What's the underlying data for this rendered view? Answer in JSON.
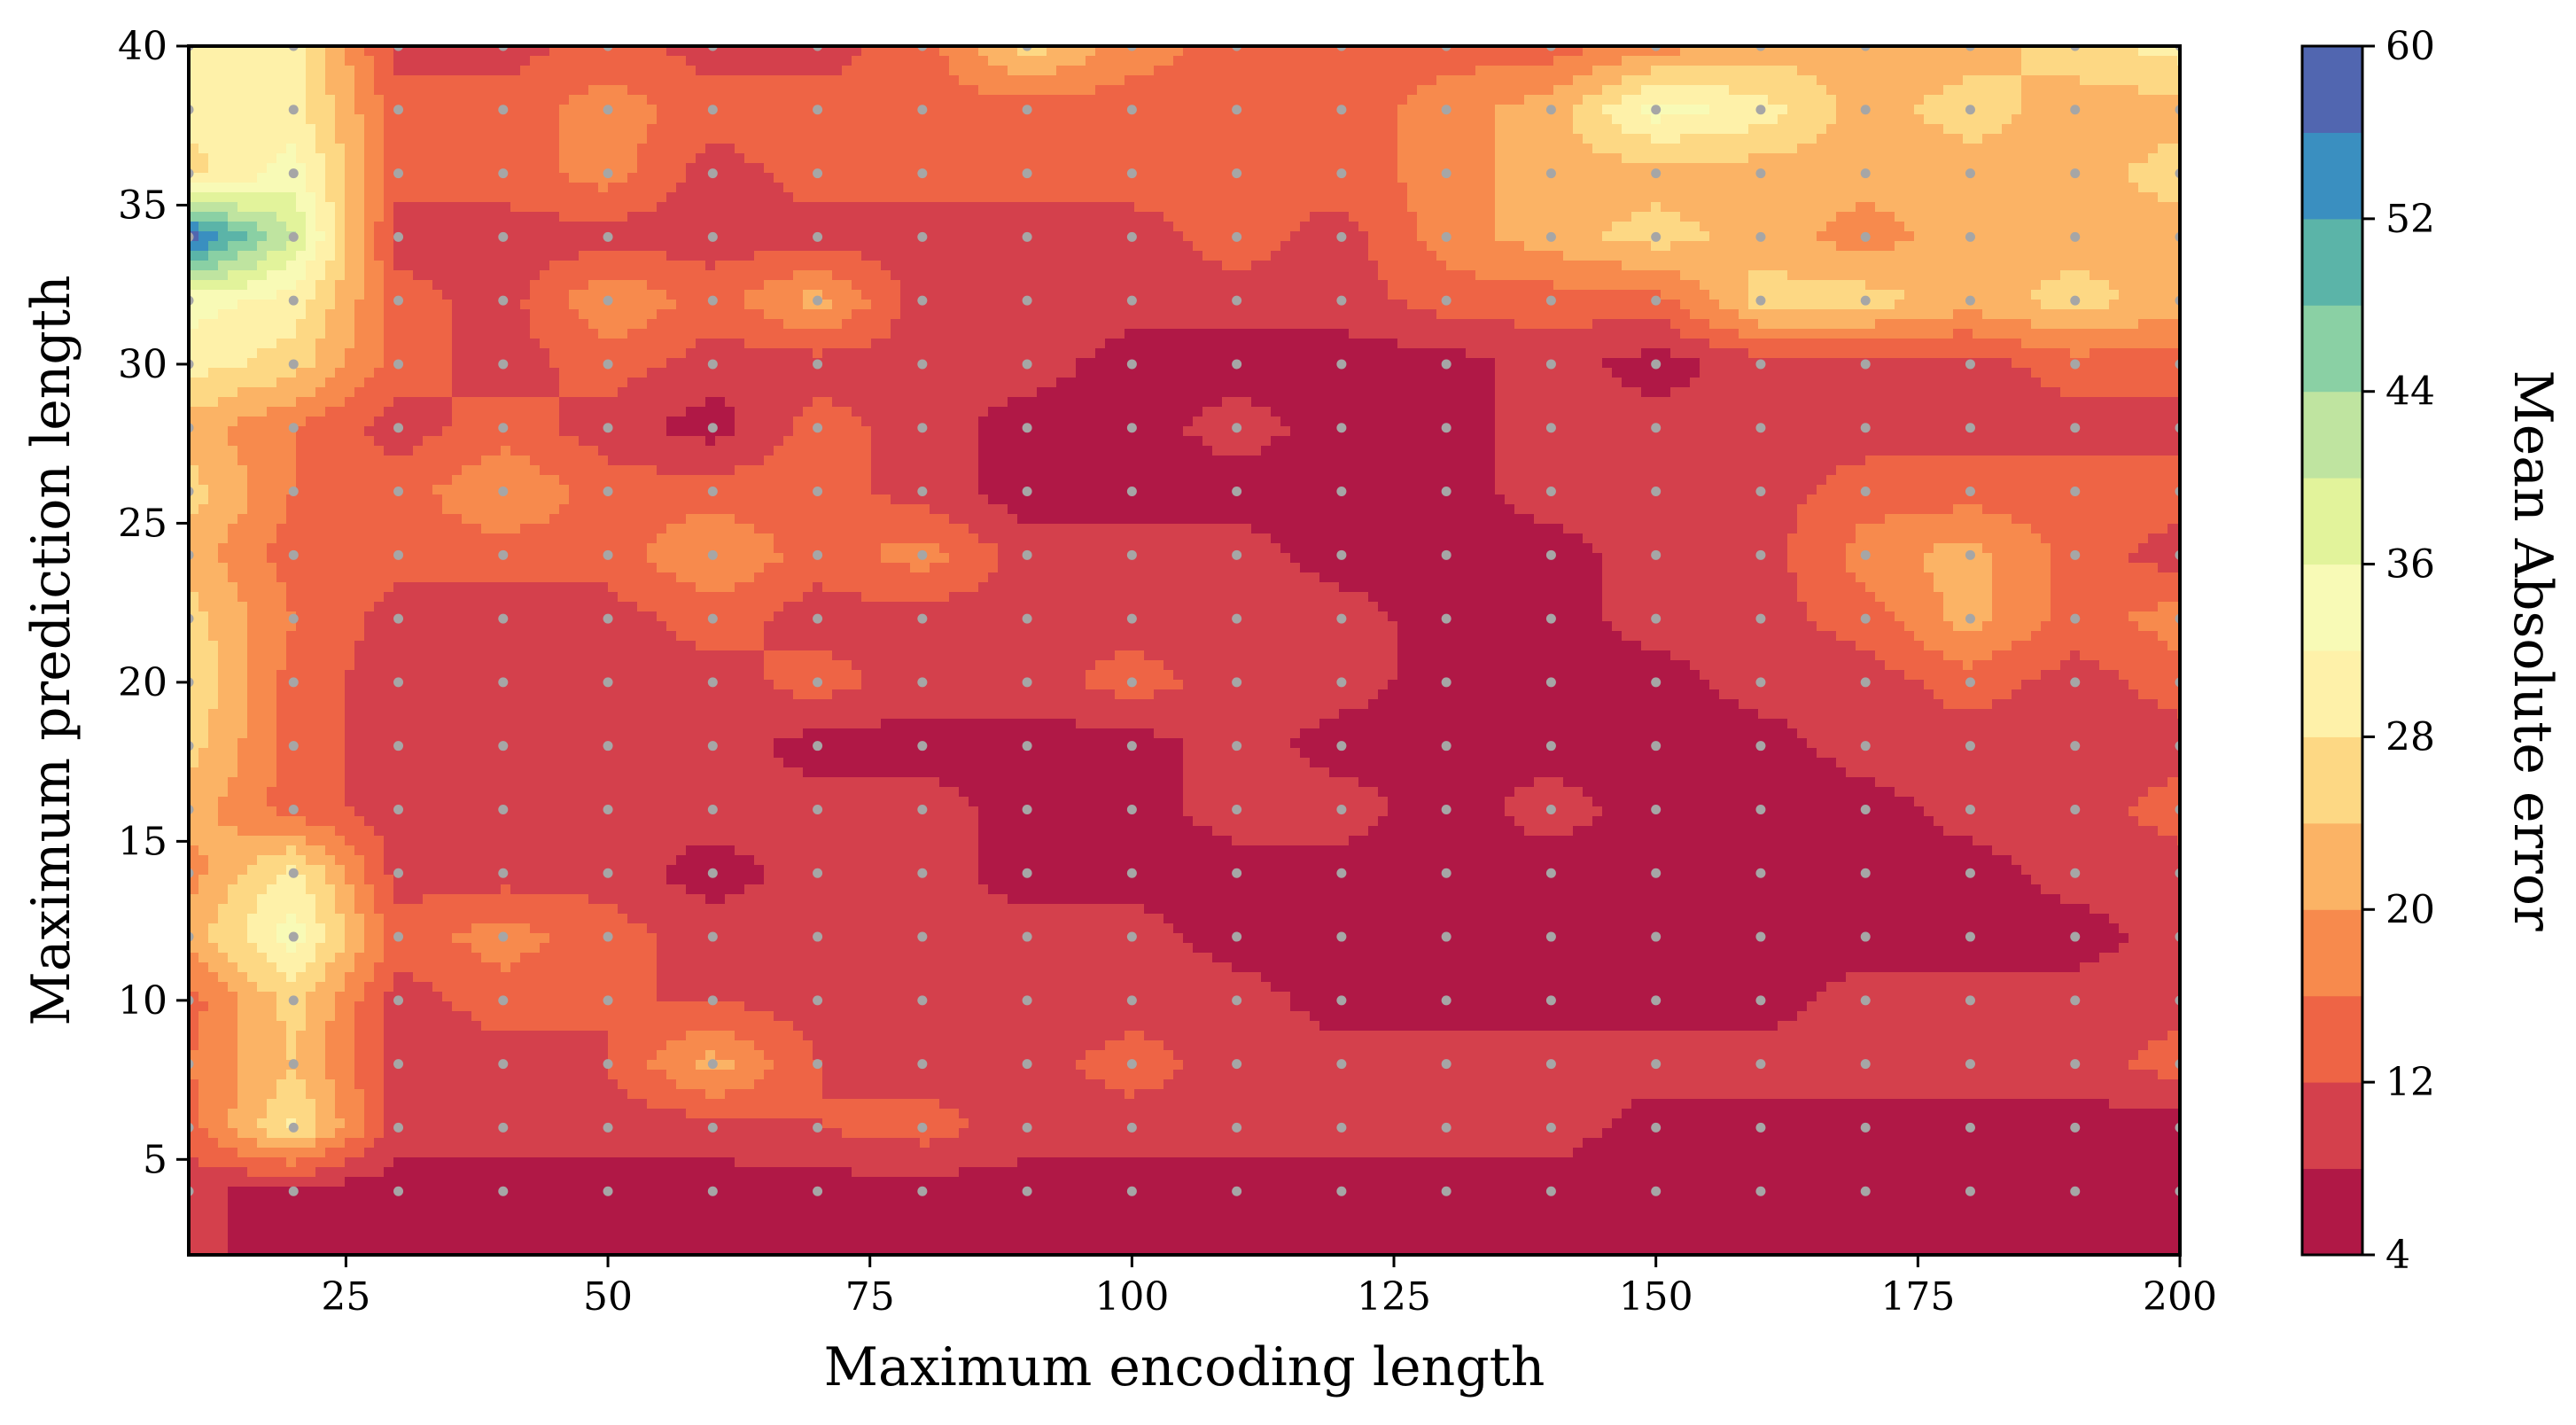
{
  "chart_data": {
    "type": "heatmap",
    "title": "",
    "xlabel": "Maximum encoding length",
    "ylabel": "Maximum prediction length",
    "colorbar_label": "Mean Absolute error",
    "xlim": [
      10,
      200
    ],
    "ylim": [
      2,
      40
    ],
    "x_ticks": [
      25,
      50,
      75,
      100,
      125,
      150,
      175,
      200
    ],
    "y_ticks": [
      5,
      10,
      15,
      20,
      25,
      30,
      35,
      40
    ],
    "colorbar_range": [
      4,
      60
    ],
    "colorbar_ticks": [
      4,
      12,
      20,
      28,
      36,
      44,
      52,
      60
    ],
    "contour_levels": [
      4,
      8,
      12,
      16,
      20,
      24,
      28,
      32,
      36,
      40,
      44,
      48,
      52,
      56,
      60
    ],
    "band_colors": [
      "#b01846",
      "#d4404c",
      "#ee6445",
      "#f78a4d",
      "#fbb365",
      "#fdd884",
      "#fef1a9",
      "#f8fab6",
      "#e2f39b",
      "#bfe4a0",
      "#8ad0a4",
      "#5bb4a8",
      "#3a8fc0",
      "#5166b0"
    ],
    "scatter_color": "#a6a6a6",
    "sample_x": [
      10,
      20,
      30,
      40,
      50,
      60,
      70,
      80,
      90,
      100,
      110,
      120,
      130,
      140,
      150,
      160,
      170,
      180,
      190,
      200
    ],
    "sample_y": [
      4,
      6,
      8,
      10,
      12,
      14,
      16,
      18,
      20,
      22,
      24,
      26,
      28,
      30,
      32,
      34,
      36,
      38,
      40
    ],
    "mae_grid": [
      [
        9.2,
        6.0,
        6.0,
        6.0,
        6.0,
        6.0,
        6.0,
        6.0,
        6.0,
        6.0,
        6.0,
        6.0,
        6.0,
        6.0,
        6.0,
        6.0,
        6.0,
        6.0,
        6.0,
        6.0
      ],
      [
        14.0,
        29.0,
        10.0,
        10.0,
        10.0,
        10.0,
        12.0,
        14.0,
        10.0,
        10.0,
        10.0,
        10.0,
        10.0,
        10.0,
        6.0,
        6.0,
        6.0,
        6.0,
        6.0,
        6.0
      ],
      [
        16.0,
        24.0,
        10.0,
        10.0,
        12.0,
        22.0,
        12.0,
        10.0,
        10.0,
        14.0,
        10.0,
        10.0,
        10.0,
        10.0,
        10.0,
        10.0,
        10.0,
        10.0,
        10.0,
        14.0
      ],
      [
        14.0,
        26.0,
        10.0,
        14.0,
        12.0,
        12.0,
        10.0,
        10.0,
        10.0,
        10.0,
        10.0,
        6.0,
        6.0,
        6.0,
        6.0,
        6.0,
        10.0,
        10.0,
        10.0,
        10.0
      ],
      [
        22.0,
        34.0,
        14.0,
        18.0,
        14.0,
        10.0,
        10.0,
        10.0,
        10.0,
        10.0,
        6.0,
        6.0,
        6.0,
        6.0,
        6.0,
        6.0,
        6.0,
        6.0,
        6.0,
        10.0
      ],
      [
        18.0,
        30.0,
        10.0,
        10.0,
        10.0,
        6.0,
        10.0,
        10.0,
        6.0,
        6.0,
        6.0,
        6.0,
        6.0,
        6.0,
        6.0,
        6.0,
        6.0,
        6.0,
        10.0,
        10.0
      ],
      [
        22.0,
        14.0,
        10.0,
        10.0,
        10.0,
        10.0,
        10.0,
        10.0,
        6.0,
        6.0,
        10.0,
        10.0,
        6.0,
        10.0,
        6.0,
        6.0,
        6.0,
        10.0,
        10.0,
        14.0
      ],
      [
        26.0,
        14.0,
        10.0,
        10.0,
        10.0,
        10.0,
        6.0,
        6.0,
        6.0,
        6.0,
        10.0,
        6.0,
        6.0,
        6.0,
        6.0,
        6.0,
        10.0,
        10.0,
        10.0,
        10.0
      ],
      [
        28.0,
        14.0,
        10.0,
        10.0,
        10.0,
        10.0,
        14.0,
        10.0,
        10.0,
        14.0,
        10.0,
        10.0,
        6.0,
        6.0,
        6.0,
        10.0,
        10.0,
        14.0,
        10.0,
        14.0
      ],
      [
        26.0,
        16.0,
        10.0,
        10.0,
        10.0,
        14.0,
        10.0,
        10.0,
        10.0,
        10.0,
        10.0,
        10.0,
        6.0,
        6.0,
        10.0,
        10.0,
        14.0,
        22.0,
        14.0,
        18.0
      ],
      [
        22.0,
        14.0,
        14.0,
        14.0,
        14.0,
        20.0,
        14.0,
        18.0,
        10.0,
        10.0,
        10.0,
        6.0,
        6.0,
        6.0,
        10.0,
        10.0,
        18.0,
        22.0,
        14.0,
        10.0
      ],
      [
        26.0,
        16.0,
        14.0,
        20.0,
        14.0,
        14.0,
        14.0,
        10.0,
        6.0,
        6.0,
        6.0,
        6.0,
        6.0,
        10.0,
        10.0,
        10.0,
        14.0,
        14.0,
        14.0,
        14.0
      ],
      [
        22.0,
        16.0,
        10.0,
        14.0,
        10.0,
        6.0,
        14.0,
        10.0,
        6.0,
        6.0,
        10.0,
        6.0,
        6.0,
        10.0,
        10.0,
        10.0,
        10.0,
        10.0,
        10.0,
        10.0
      ],
      [
        30.0,
        26.0,
        14.0,
        10.0,
        14.0,
        10.0,
        10.0,
        10.0,
        10.0,
        6.0,
        6.0,
        6.0,
        6.0,
        10.0,
        6.0,
        10.0,
        10.0,
        10.0,
        14.0,
        14.0
      ],
      [
        34.0,
        30.0,
        14.0,
        10.0,
        20.0,
        14.0,
        22.0,
        10.0,
        10.0,
        10.0,
        10.0,
        10.0,
        14.0,
        14.0,
        14.0,
        26.0,
        26.0,
        22.0,
        26.0,
        22.0
      ],
      [
        58.0,
        40.0,
        10.0,
        10.0,
        10.0,
        10.0,
        10.0,
        10.0,
        10.0,
        10.0,
        14.0,
        10.0,
        18.0,
        22.0,
        26.0,
        22.0,
        18.0,
        22.0,
        22.0,
        22.0
      ],
      [
        26.0,
        34.0,
        14.0,
        14.0,
        18.0,
        10.0,
        14.0,
        14.0,
        14.0,
        14.0,
        14.0,
        14.0,
        18.0,
        22.0,
        22.0,
        22.0,
        22.0,
        22.0,
        22.0,
        26.0
      ],
      [
        30.0,
        30.0,
        14.0,
        14.0,
        18.0,
        14.0,
        14.0,
        14.0,
        14.0,
        14.0,
        14.0,
        14.0,
        18.0,
        22.0,
        34.0,
        30.0,
        22.0,
        26.0,
        22.0,
        22.0
      ],
      [
        30.0,
        30.0,
        10.0,
        10.0,
        14.0,
        10.0,
        10.0,
        14.0,
        26.0,
        18.0,
        14.0,
        14.0,
        14.0,
        14.0,
        18.0,
        22.0,
        22.0,
        22.0,
        26.0,
        30.0
      ]
    ]
  }
}
